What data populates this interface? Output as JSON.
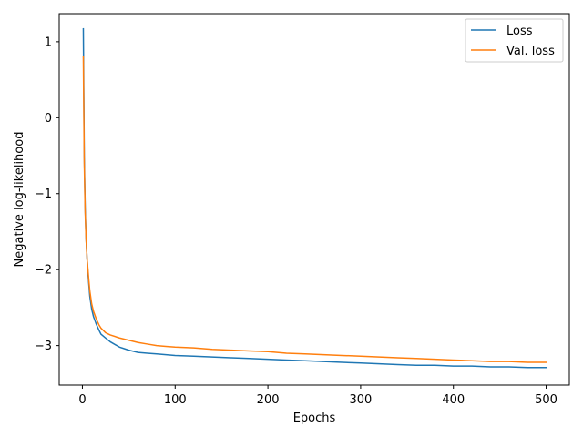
{
  "chart_data": {
    "type": "line",
    "xlabel": "Epochs",
    "ylabel": "Negative log-likelihood",
    "xlim": [
      -25,
      525
    ],
    "ylim": [
      -3.52,
      1.37
    ],
    "xticks": [
      0,
      100,
      200,
      300,
      400,
      500
    ],
    "yticks": [
      -3,
      -2,
      -1,
      0,
      1
    ],
    "xtick_labels": [
      "0",
      "100",
      "200",
      "300",
      "400",
      "500"
    ],
    "ytick_labels": [
      "−3",
      "−2",
      "−1",
      "0",
      "1"
    ],
    "grid": false,
    "legend_position": "top-right",
    "series": [
      {
        "name": "Loss",
        "color": "#1f77b4",
        "x": [
          1,
          2,
          3,
          4,
          5,
          6,
          7,
          8,
          10,
          12,
          15,
          18,
          20,
          25,
          30,
          40,
          50,
          60,
          70,
          80,
          90,
          100,
          120,
          140,
          160,
          180,
          200,
          220,
          240,
          260,
          280,
          300,
          320,
          340,
          360,
          380,
          400,
          420,
          440,
          460,
          480,
          500
        ],
        "values": [
          1.17,
          -0.5,
          -1.2,
          -1.6,
          -1.85,
          -2.05,
          -2.2,
          -2.35,
          -2.52,
          -2.62,
          -2.72,
          -2.8,
          -2.85,
          -2.9,
          -2.95,
          -3.02,
          -3.06,
          -3.09,
          -3.1,
          -3.11,
          -3.12,
          -3.13,
          -3.14,
          -3.15,
          -3.16,
          -3.17,
          -3.18,
          -3.19,
          -3.2,
          -3.21,
          -3.22,
          -3.23,
          -3.24,
          -3.25,
          -3.26,
          -3.26,
          -3.27,
          -3.27,
          -3.28,
          -3.28,
          -3.29,
          -3.29
        ]
      },
      {
        "name": "Val. loss",
        "color": "#ff7f0e",
        "x": [
          1,
          2,
          3,
          4,
          5,
          6,
          7,
          8,
          10,
          12,
          15,
          18,
          20,
          25,
          30,
          40,
          50,
          60,
          70,
          80,
          90,
          100,
          120,
          140,
          160,
          180,
          200,
          220,
          240,
          260,
          280,
          300,
          320,
          340,
          360,
          380,
          400,
          420,
          440,
          460,
          480,
          500
        ],
        "values": [
          0.8,
          -0.6,
          -1.25,
          -1.6,
          -1.85,
          -2.0,
          -2.15,
          -2.28,
          -2.45,
          -2.55,
          -2.65,
          -2.73,
          -2.77,
          -2.83,
          -2.86,
          -2.9,
          -2.93,
          -2.96,
          -2.98,
          -3.0,
          -3.01,
          -3.02,
          -3.03,
          -3.05,
          -3.06,
          -3.07,
          -3.08,
          -3.1,
          -3.11,
          -3.12,
          -3.13,
          -3.14,
          -3.15,
          -3.16,
          -3.17,
          -3.18,
          -3.19,
          -3.2,
          -3.21,
          -3.21,
          -3.22,
          -3.22
        ]
      }
    ]
  }
}
